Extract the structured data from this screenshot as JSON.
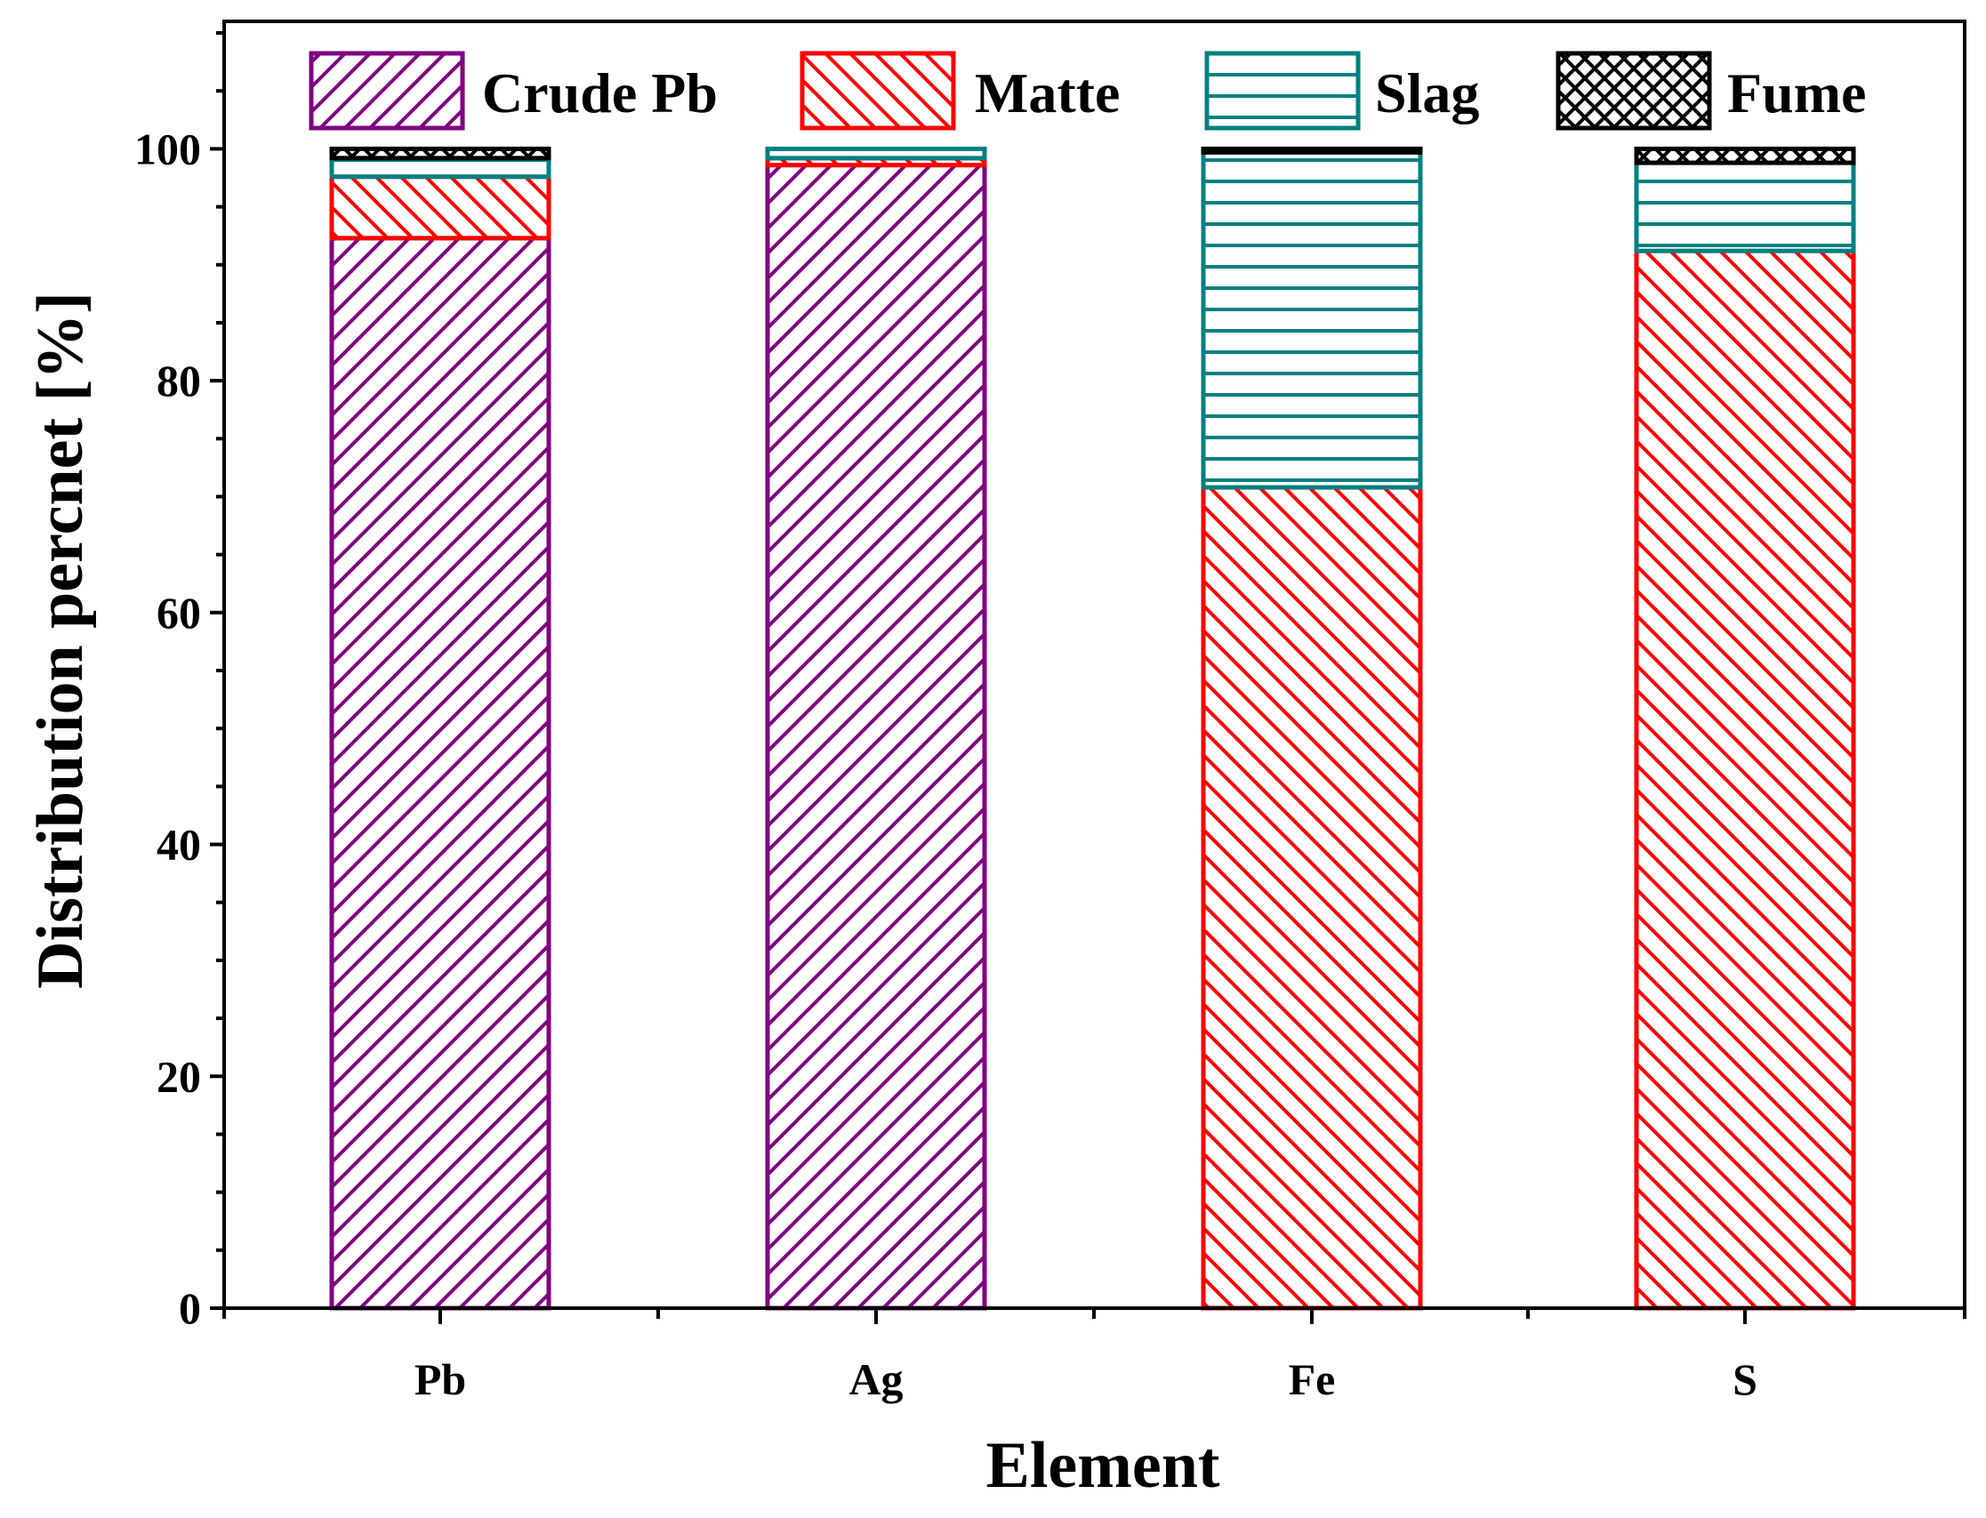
{
  "chart_data": {
    "type": "bar",
    "stacked": true,
    "title": "",
    "xlabel": "Element",
    "ylabel": "Distribution percnet [%]",
    "ylim": [
      0,
      111
    ],
    "yticks": [
      0,
      20,
      40,
      60,
      80,
      100
    ],
    "ytick_labels": [
      "0",
      "20",
      "40",
      "60",
      "80",
      "100"
    ],
    "categories": [
      "Pb",
      "Ag",
      "Fe",
      "S"
    ],
    "legend_position": "top",
    "series": [
      {
        "name": "Crude Pb",
        "color": "#800080",
        "pattern": "diagonal-up",
        "values": [
          92.3,
          98.6,
          0.0,
          0.0
        ]
      },
      {
        "name": "Matte",
        "color": "#ff0000",
        "pattern": "diagonal-down",
        "values": [
          5.3,
          0.6,
          70.8,
          91.2
        ]
      },
      {
        "name": "Slag",
        "color": "#008080",
        "pattern": "horizontal",
        "values": [
          1.6,
          0.8,
          28.9,
          7.6
        ]
      },
      {
        "name": "Fume",
        "color": "#000000",
        "pattern": "crosshatch",
        "values": [
          0.8,
          0.0,
          0.3,
          1.2
        ]
      }
    ]
  }
}
